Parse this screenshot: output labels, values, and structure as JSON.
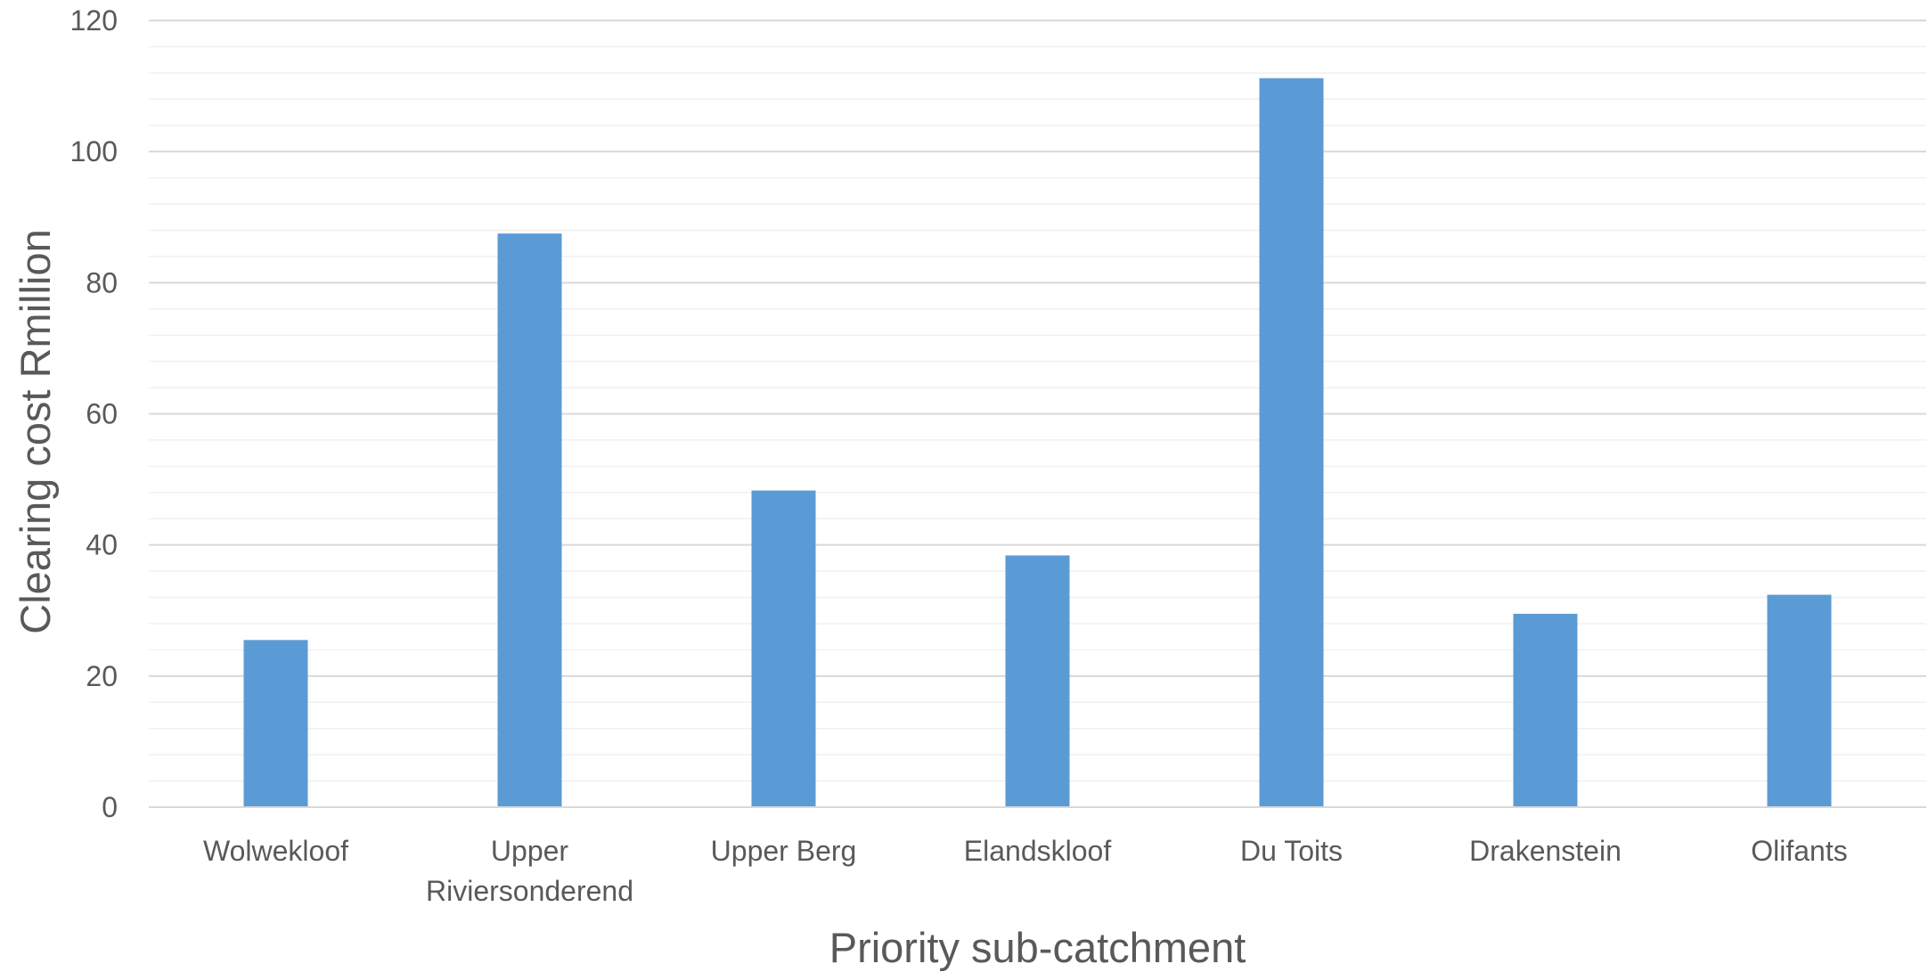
{
  "chart_data": {
    "type": "bar",
    "title": "",
    "xlabel": "Priority sub-catchment",
    "ylabel": "Clearing cost Rmillion",
    "categories": [
      "Wolwekloof",
      "Upper Riviersonderend",
      "Upper Berg",
      "Elandskloof",
      "Du Toits",
      "Drakenstein",
      "Olifants"
    ],
    "category_label_lines": [
      [
        "Wolwekloof"
      ],
      [
        "Upper",
        "Riviersonderend"
      ],
      [
        "Upper Berg"
      ],
      [
        "Elandskloof"
      ],
      [
        "Du Toits"
      ],
      [
        "Drakenstein"
      ],
      [
        "Olifants"
      ]
    ],
    "values": [
      25.5,
      87.5,
      48.3,
      38.4,
      111.2,
      29.5,
      32.4
    ],
    "ylim": [
      0,
      120
    ],
    "yticks": [
      0,
      20,
      40,
      60,
      80,
      100,
      120
    ],
    "minor_step": 4,
    "grid": true,
    "legend": "none",
    "colors": {
      "bar": "#5b9bd5",
      "major_grid": "#d9d9d9",
      "minor_grid": "#f0f0f0",
      "axis_line": "#d9d9d9",
      "text": "#595959"
    }
  }
}
